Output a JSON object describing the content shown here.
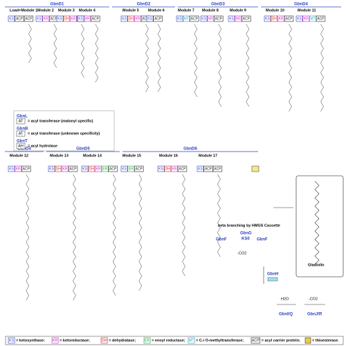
{
  "row1": {
    "proteins": [
      "GbnD1",
      "GbnD2",
      "GbnD3",
      "GbnD4"
    ],
    "modules": [
      {
        "name": "Load+Module 1",
        "domains": [
          "KS",
          "ACP",
          "ACP"
        ]
      },
      {
        "name": "Module 2",
        "domains": [
          "KS",
          "KR",
          "ACP"
        ]
      },
      {
        "name": "Module 3",
        "domains": [
          "KS",
          "DH",
          "KR",
          "ACP"
        ]
      },
      {
        "name": "Module 4",
        "domains": [
          "KS",
          "KR",
          "ACP"
        ]
      },
      {
        "name": "Module 5",
        "domains": [
          "KS",
          "DH",
          "KR",
          "ACP"
        ]
      },
      {
        "name": "Module 6",
        "domains": [
          "KS",
          "ACP"
        ]
      },
      {
        "name": "Module 7",
        "domains": [
          "KS",
          "MT",
          "ACP"
        ]
      },
      {
        "name": "Module 8",
        "domains": [
          "KS",
          "KR",
          "ACP"
        ]
      },
      {
        "name": "Module 9",
        "domains": [
          "KS",
          "KR",
          "ACP"
        ]
      },
      {
        "name": "Module 10",
        "domains": [
          "KS",
          "DH",
          "KR",
          "ACP"
        ]
      },
      {
        "name": "Module 11",
        "domains": [
          "KS",
          "KR",
          "MT",
          "ACP"
        ]
      }
    ]
  },
  "row2": {
    "proteins": [
      "GbnD4",
      "GbnD5",
      "GbnD6"
    ],
    "modules": [
      {
        "name": "Module 12",
        "domains": [
          "KS",
          "KR",
          "ACP"
        ]
      },
      {
        "name": "Module 13",
        "domains": [
          "KS",
          "DH",
          "KR",
          "ACP"
        ]
      },
      {
        "name": "Module 14",
        "domains": [
          "KS",
          "DH",
          "KR",
          "ER",
          "ACP"
        ]
      },
      {
        "name": "Module 15",
        "domains": [
          "KS",
          "ER",
          "ACP"
        ]
      },
      {
        "name": "Module 16",
        "domains": [
          "KS",
          "DH",
          "KR",
          "ACP"
        ]
      },
      {
        "name": "Module 17",
        "domains": [
          "KS",
          "ACP",
          "ACP"
        ]
      }
    ]
  },
  "legend_left": [
    {
      "protein": "GbnL",
      "domain": "AT",
      "text": "= acyl transferase (malonyl specific)"
    },
    {
      "protein": "GbnB",
      "domain": "AT",
      "text": "= acyl transferase (unknown specificity)"
    },
    {
      "protein": "GbnT",
      "domain": "AH",
      "text": "= acyl hydrolase"
    }
  ],
  "legend_bottom": [
    {
      "key": "KS",
      "text": "= ketosynthase;",
      "color": "#2a3fbf"
    },
    {
      "key": "KR",
      "text": "= ketoreductase;",
      "color": "#c020c0"
    },
    {
      "key": "DH",
      "text": "= dehydratase;",
      "color": "#d02020"
    },
    {
      "key": "ER",
      "text": "= enoyl reductase;",
      "color": "#20a040"
    },
    {
      "key": "MT",
      "text": "= C-/ O-methyltransferase;",
      "color": "#20a0c0"
    },
    {
      "key": "ACP",
      "text": "= acyl carrier protein;",
      "color": "#222222"
    },
    {
      "key": "",
      "text": "= thioesterase.",
      "color": "#e8d040"
    }
  ],
  "hmgs": {
    "title": "beta branching by HMGS Cassette",
    "gbnf1": "GbnF",
    "gbng": "GbnG",
    "ks0": "KS0",
    "gbnf2": "GbnF",
    "co2a": "-CO2",
    "gbnh": "GbnH",
    "h2o": "H2O",
    "gbniq": "GbnI/Q",
    "co2b": "-CO2",
    "gbnjr": "GbnJ/R"
  },
  "product": "Gladiolin"
}
